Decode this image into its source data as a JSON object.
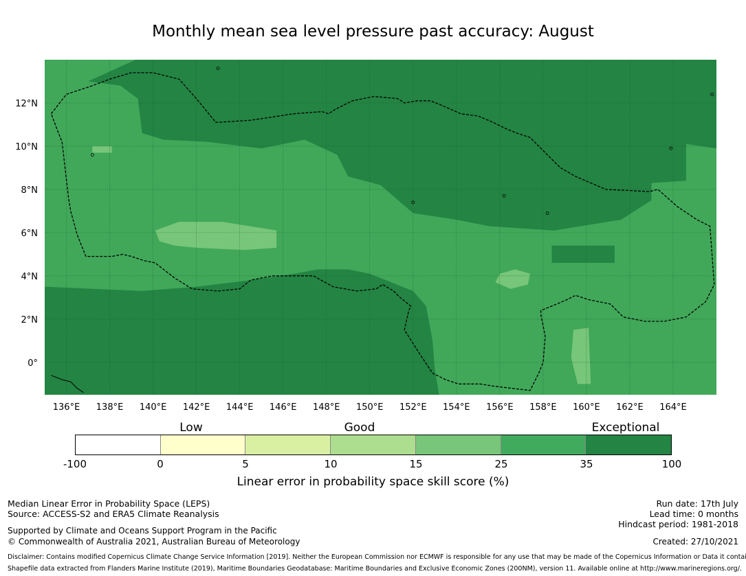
{
  "title": "Monthly mean sea level pressure past accuracy: August",
  "map": {
    "lon_range": [
      135,
      166
    ],
    "lat_range": [
      -1.5,
      14
    ],
    "x_ticks": [
      "136°E",
      "138°E",
      "140°E",
      "142°E",
      "144°E",
      "146°E",
      "148°E",
      "150°E",
      "152°E",
      "154°E",
      "156°E",
      "158°E",
      "160°E",
      "162°E",
      "164°E"
    ],
    "x_tick_values": [
      136,
      138,
      140,
      142,
      144,
      146,
      148,
      150,
      152,
      154,
      156,
      158,
      160,
      162,
      164
    ],
    "y_ticks": [
      "12°N",
      "10°N",
      "8°N",
      "6°N",
      "4°N",
      "2°N",
      "0°"
    ],
    "y_tick_values": [
      12,
      10,
      8,
      6,
      4,
      2,
      0
    ],
    "background_color": "#41a85a",
    "regions": [
      {
        "class": "35-100",
        "color": "#238443",
        "points": [
          [
            139.2,
            14
          ],
          [
            166,
            14
          ],
          [
            166,
            9.9
          ],
          [
            164.6,
            10.1
          ],
          [
            164.6,
            8.4
          ],
          [
            163,
            8.3
          ],
          [
            163,
            7.5
          ],
          [
            161.6,
            6.6
          ],
          [
            158.5,
            6.1
          ],
          [
            155.5,
            6.3
          ],
          [
            154,
            6.6
          ],
          [
            152,
            6.9
          ],
          [
            150.5,
            8.2
          ],
          [
            149,
            8.6
          ],
          [
            148.5,
            9.6
          ],
          [
            147,
            10.3
          ],
          [
            145,
            9.9
          ],
          [
            142.5,
            10.2
          ],
          [
            140.5,
            10.3
          ],
          [
            139.5,
            10.6
          ],
          [
            139.3,
            12.2
          ],
          [
            138.5,
            12.8
          ],
          [
            137,
            13.0
          ]
        ]
      },
      {
        "class": "35-100",
        "color": "#238443",
        "points": [
          [
            135,
            3.5
          ],
          [
            139.5,
            3.3
          ],
          [
            142,
            3.5
          ],
          [
            144.5,
            3.8
          ],
          [
            146.5,
            4.1
          ],
          [
            147.6,
            4.3
          ],
          [
            149,
            4.3
          ],
          [
            150,
            4.1
          ],
          [
            152,
            3.3
          ],
          [
            152.6,
            2.6
          ],
          [
            152.9,
            1.0
          ],
          [
            153,
            -0.3
          ],
          [
            153.2,
            -1.5
          ],
          [
            135,
            -1.5
          ]
        ]
      },
      {
        "class": "35-100",
        "color": "#238443",
        "points": [
          [
            158.4,
            5.4
          ],
          [
            161.3,
            5.4
          ],
          [
            161.3,
            4.6
          ],
          [
            158.4,
            4.6
          ]
        ]
      },
      {
        "class": "15-25",
        "color": "#78c679",
        "points": [
          [
            140.1,
            6.1
          ],
          [
            141.2,
            6.5
          ],
          [
            143.2,
            6.5
          ],
          [
            145.7,
            6.1
          ],
          [
            145.7,
            5.3
          ],
          [
            144.2,
            5.2
          ],
          [
            142,
            5.3
          ],
          [
            141,
            5.4
          ],
          [
            140.3,
            5.6
          ]
        ]
      },
      {
        "class": "15-25",
        "color": "#78c679",
        "points": [
          [
            156,
            4.1
          ],
          [
            156.7,
            4.3
          ],
          [
            157.4,
            4.1
          ],
          [
            157.3,
            3.6
          ],
          [
            156.5,
            3.4
          ],
          [
            155.8,
            3.7
          ]
        ]
      },
      {
        "class": "15-25",
        "color": "#78c679",
        "points": [
          [
            159.4,
            1.5
          ],
          [
            160.1,
            1.6
          ],
          [
            160.2,
            -1.0
          ],
          [
            159.6,
            -1.0
          ],
          [
            159.3,
            0.2
          ]
        ]
      },
      {
        "class": "15-25",
        "color": "#78c679",
        "points": [
          [
            137.2,
            10.0
          ],
          [
            138.1,
            10.0
          ],
          [
            138.1,
            9.7
          ],
          [
            137.2,
            9.7
          ]
        ]
      }
    ],
    "boundaries": [
      [
        [
          135.3,
          11.5
        ],
        [
          136,
          12.4
        ],
        [
          137.2,
          12.8
        ],
        [
          138,
          13.1
        ],
        [
          139,
          13.4
        ],
        [
          140,
          13.4
        ],
        [
          141.2,
          13.1
        ],
        [
          142,
          12.2
        ],
        [
          142.9,
          11.1
        ],
        [
          144.5,
          11.2
        ],
        [
          146.5,
          11.5
        ],
        [
          147.8,
          11.6
        ],
        [
          148.1,
          11.5
        ],
        [
          148.4,
          11.7
        ],
        [
          149.2,
          12.1
        ],
        [
          150.2,
          12.3
        ],
        [
          151.3,
          12.2
        ],
        [
          151.6,
          12.0
        ],
        [
          152.2,
          12.1
        ],
        [
          152.8,
          12.1
        ],
        [
          153.3,
          11.9
        ],
        [
          154.2,
          11.5
        ],
        [
          155,
          11.4
        ],
        [
          155.7,
          11.1
        ],
        [
          156.3,
          10.8
        ],
        [
          156.8,
          10.6
        ],
        [
          157.4,
          10.4
        ],
        [
          158.1,
          9.7
        ],
        [
          158.8,
          9.0
        ],
        [
          159.5,
          8.6
        ],
        [
          160.9,
          8.0
        ],
        [
          162,
          7.95
        ],
        [
          162.9,
          7.9
        ],
        [
          163.3,
          8.0
        ],
        [
          164.2,
          7.2
        ],
        [
          165.1,
          6.6
        ],
        [
          165.7,
          6.3
        ],
        [
          165.9,
          3.6
        ],
        [
          165.5,
          2.8
        ],
        [
          164.6,
          2.1
        ],
        [
          163.6,
          1.9
        ],
        [
          162.7,
          1.9
        ],
        [
          161.7,
          2.1
        ],
        [
          161.1,
          2.7
        ],
        [
          160.6,
          2.8
        ],
        [
          160.1,
          2.9
        ],
        [
          159.5,
          3.1
        ],
        [
          159.1,
          2.9
        ],
        [
          158.4,
          2.6
        ],
        [
          157.9,
          2.4
        ],
        [
          157.9,
          2.2
        ],
        [
          158.1,
          1.2
        ],
        [
          158.0,
          0.0
        ],
        [
          157.8,
          -0.5
        ],
        [
          157.4,
          -1.3
        ],
        [
          155.7,
          -1.1
        ],
        [
          155.1,
          -1.0
        ],
        [
          154.1,
          -1.0
        ],
        [
          153.5,
          -0.8
        ],
        [
          152.9,
          -0.5
        ],
        [
          152.3,
          0.4
        ],
        [
          151.6,
          1.5
        ],
        [
          151.8,
          2.4
        ],
        [
          151.9,
          2.6
        ],
        [
          151.4,
          3.0
        ],
        [
          151.1,
          3.3
        ],
        [
          150.6,
          3.6
        ],
        [
          150.3,
          3.4
        ],
        [
          149.4,
          3.3
        ],
        [
          148.3,
          3.5
        ],
        [
          147.4,
          4.0
        ],
        [
          146.8,
          4.0
        ],
        [
          145.5,
          4.0
        ],
        [
          144.5,
          3.8
        ],
        [
          144,
          3.4
        ],
        [
          143,
          3.3
        ],
        [
          141.8,
          3.4
        ],
        [
          141,
          3.9
        ],
        [
          140.1,
          4.6
        ],
        [
          139.6,
          4.7
        ],
        [
          139,
          4.9
        ],
        [
          138.6,
          5.0
        ],
        [
          138.1,
          4.9
        ],
        [
          136.9,
          4.9
        ],
        [
          136.5,
          5.9
        ],
        [
          136.2,
          7.0
        ],
        [
          136.1,
          7.6
        ],
        [
          135.8,
          10.2
        ],
        [
          135.6,
          10.7
        ]
      ]
    ],
    "islands": [
      [
        143.0,
        13.6
      ],
      [
        137.2,
        9.6
      ],
      [
        152.0,
        7.4
      ],
      [
        156.2,
        7.7
      ],
      [
        158.2,
        6.9
      ],
      [
        165.8,
        12.4
      ],
      [
        163.9,
        9.9
      ]
    ]
  },
  "colorbar": {
    "categories": [
      {
        "label": "Low",
        "at": 5
      },
      {
        "label": "Good",
        "at": 15
      },
      {
        "label": "Exceptional",
        "at": 40
      }
    ],
    "segments": [
      {
        "from": "-100",
        "to": "0",
        "color": "#ffffff"
      },
      {
        "from": "0",
        "to": "5",
        "color": "#ffffcc"
      },
      {
        "from": "5",
        "to": "10",
        "color": "#d9f0a3"
      },
      {
        "from": "10",
        "to": "15",
        "color": "#addd8e"
      },
      {
        "from": "15",
        "to": "25",
        "color": "#78c679"
      },
      {
        "from": "25",
        "to": "35",
        "color": "#41ab5d"
      },
      {
        "from": "35",
        "to": "100",
        "color": "#238443"
      }
    ],
    "ticks": [
      "-100",
      "0",
      "5",
      "10",
      "15",
      "25",
      "35",
      "100"
    ],
    "label": "Linear error in probability space skill score (%)"
  },
  "footer": {
    "left1": "Median Linear Error in Probability Space (LEPS)",
    "left2": "Source: ACCESS-S2 and ERA5 Climate Reanalysis",
    "left3": "Supported by Climate and Oceans Support Program in the Pacific",
    "left4": "© Commonwealth of Australia 2021, Australian Bureau of Meteorology",
    "right1": "Run date: 17th July",
    "right2": "Lead time: 0 months",
    "right3": "Hindcast period: 1981-2018",
    "right4": "Created: 27/10/2021",
    "disclaimer": "Disclaimer: Contains modified Copernicus Climate Change Service Information [2019]. Neither the European Commission nor ECMWF is responsible for any use that may be made of the Copernicus Information or Data it contains.",
    "shapefile": "Shapefile data extracted from Flanders Marine Institute (2019), Maritime Boundaries Geodatabase: Maritime Boundaries and Exclusive Economic Zones (200NM), version 11. Available online at http://www.marineregions.org/."
  }
}
